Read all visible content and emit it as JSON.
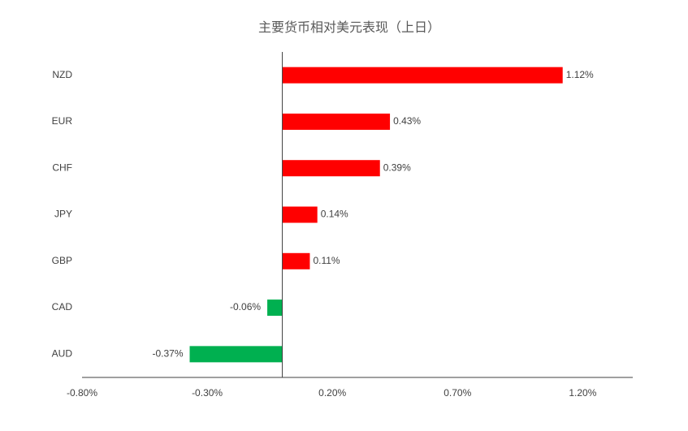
{
  "chart_data": {
    "type": "hbar",
    "title": "主要货币相对美元表现（上日）",
    "categories": [
      "NZD",
      "EUR",
      "CHF",
      "JPY",
      "GBP",
      "CAD",
      "AUD"
    ],
    "values": [
      1.12,
      0.43,
      0.39,
      0.14,
      0.11,
      -0.06,
      -0.37
    ],
    "value_labels": [
      "1.12%",
      "0.43%",
      "0.39%",
      "0.14%",
      "0.11%",
      "-0.06%",
      "-0.37%"
    ],
    "colors": [
      "#ff0000",
      "#ff0000",
      "#ff0000",
      "#ff0000",
      "#ff0000",
      "#00b050",
      "#00b050"
    ],
    "xlim": [
      -0.8,
      1.4
    ],
    "xticks": [
      {
        "value": -0.8,
        "label": "-0.80%"
      },
      {
        "value": -0.3,
        "label": "-0.30%"
      },
      {
        "value": 0.2,
        "label": "0.20%"
      },
      {
        "value": 0.7,
        "label": "0.70%"
      },
      {
        "value": 1.2,
        "label": "1.20%"
      }
    ],
    "grid": false
  }
}
